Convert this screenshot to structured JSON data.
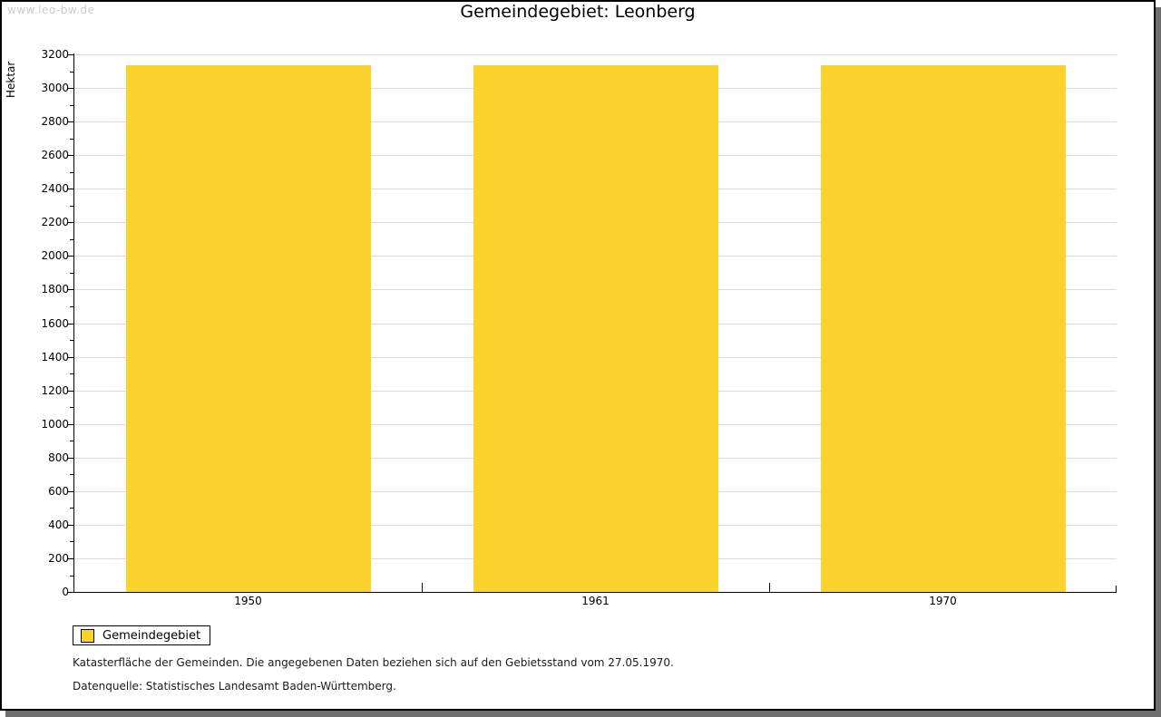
{
  "watermark": "www.leo-bw.de",
  "title": "Gemeindegebiet: Leonberg",
  "chart_data": {
    "type": "bar",
    "title": "Gemeindegebiet: Leonberg",
    "categories": [
      "1950",
      "1961",
      "1970"
    ],
    "series": [
      {
        "name": "Gemeindegebiet",
        "values": [
          3134,
          3134,
          3134
        ]
      }
    ],
    "xlabel": "",
    "ylabel": "Hektar",
    "ylim": [
      0,
      3200
    ],
    "y_major_step": 200,
    "y_minor_step": 100,
    "grid": true,
    "legend_position": "bottom-left",
    "bar_color": "#FCD32D"
  },
  "legend": {
    "items": [
      {
        "label": "Gemeindegebiet",
        "color": "#FCD32D"
      }
    ]
  },
  "footer": {
    "line1": "Katasterfläche der Gemeinden. Die angegebenen Daten beziehen sich auf den Gebietsstand vom 27.05.1970.",
    "line2": "Datenquelle: Statistisches Landesamt Baden-Württemberg."
  },
  "colors": {
    "bar": "#FCD32D",
    "grid": "#DCDCDC",
    "axis": "#000000",
    "watermark": "#CACACA",
    "shadow": "#6E6E6E",
    "border": "#000000"
  }
}
